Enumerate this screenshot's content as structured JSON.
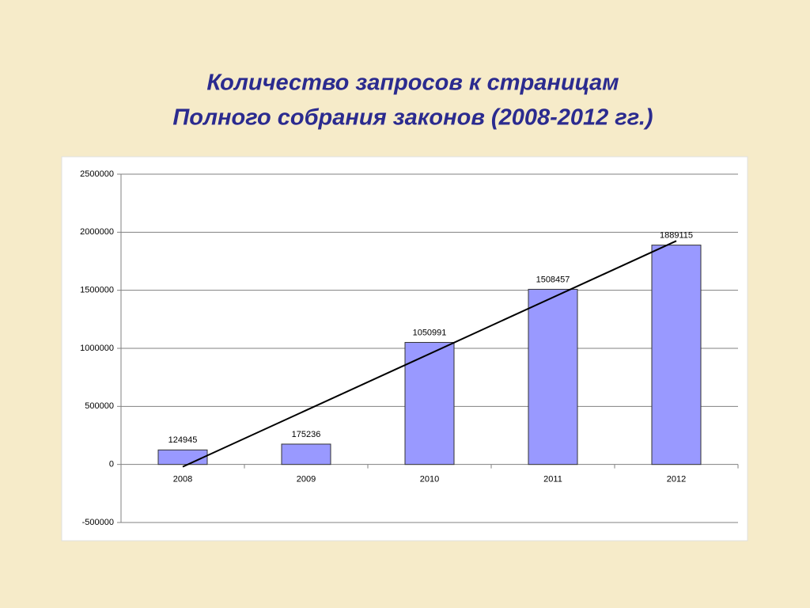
{
  "chart_data": {
    "type": "bar",
    "title": "Количество запросов к страницам",
    "subtitle": "Полного собрания законов (2008-2012 гг.)",
    "categories": [
      "2008",
      "2009",
      "2010",
      "2011",
      "2012"
    ],
    "values": [
      124945,
      175236,
      1050991,
      1508457,
      1889115
    ],
    "color": "#9999ff",
    "trendline": {
      "color": "#000000",
      "values": [
        -20000,
        1925000
      ]
    },
    "ylim": [
      -500000,
      2500000
    ],
    "yticks": [
      -500000,
      0,
      500000,
      1000000,
      1500000,
      2000000,
      2500000
    ],
    "grid": true
  }
}
